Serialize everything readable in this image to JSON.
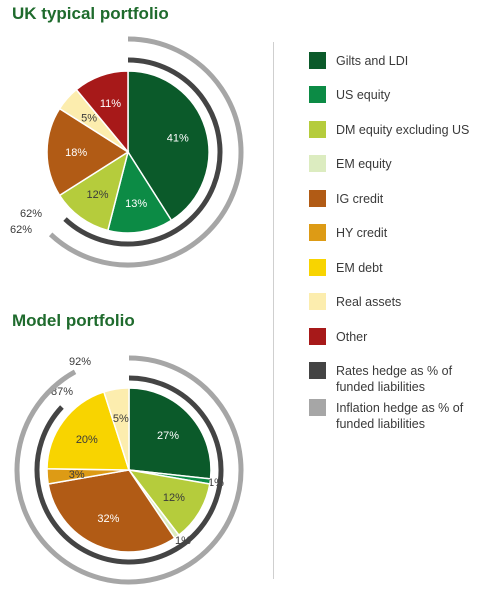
{
  "legend": {
    "items": [
      {
        "label": "Gilts and LDI",
        "color": "#0b5a2a"
      },
      {
        "label": "US equity",
        "color": "#0c8b45"
      },
      {
        "label": "DM equity excluding US",
        "color": "#b5cc3c"
      },
      {
        "label": "EM equity",
        "color": "#dcecc0"
      },
      {
        "label": "IG credit",
        "color": "#b15b15"
      },
      {
        "label": "HY credit",
        "color": "#dd9b15"
      },
      {
        "label": "EM debt",
        "color": "#f8d400"
      },
      {
        "label": "Real assets",
        "color": "#fcedae"
      },
      {
        "label": "Other",
        "color": "#a71919"
      },
      {
        "label": "Rates hedge as % of funded liabilities",
        "color": "#444444"
      },
      {
        "label": "Inflation hedge as % of funded liabilities",
        "color": "#a6a6a6"
      }
    ]
  },
  "chart_data": [
    {
      "type": "pie",
      "title": "UK typical portfolio",
      "slices": [
        {
          "category": "Gilts and LDI",
          "value": 41,
          "label": "41%"
        },
        {
          "category": "US equity",
          "value": 13,
          "label": "13%"
        },
        {
          "category": "DM equity excluding US",
          "value": 12,
          "label": "12%"
        },
        {
          "category": "IG credit",
          "value": 18,
          "label": "18%"
        },
        {
          "category": "Real assets",
          "value": 5,
          "label": "5%"
        },
        {
          "category": "Other",
          "value": 11,
          "label": "11%"
        }
      ],
      "hedges": [
        {
          "name": "Rates hedge as % of funded liabilities",
          "value": 62,
          "label": "62%"
        },
        {
          "name": "Inflation hedge as % of funded liabilities",
          "value": 62,
          "label": "62%"
        }
      ]
    },
    {
      "type": "pie",
      "title": "Model portfolio",
      "slices": [
        {
          "category": "Gilts and LDI",
          "value": 27,
          "label": "27%"
        },
        {
          "category": "US equity",
          "value": 1,
          "label": "1%"
        },
        {
          "category": "DM equity excluding US",
          "value": 12,
          "label": "12%"
        },
        {
          "category": "EM equity",
          "value": 1,
          "label": "1%"
        },
        {
          "category": "IG credit",
          "value": 32,
          "label": "32%"
        },
        {
          "category": "HY credit",
          "value": 3,
          "label": "3%"
        },
        {
          "category": "EM debt",
          "value": 20,
          "label": "20%"
        },
        {
          "category": "Real assets",
          "value": 5,
          "label": "5%"
        }
      ],
      "hedges": [
        {
          "name": "Rates hedge as % of funded liabilities",
          "value": 87,
          "label": "87%"
        },
        {
          "name": "Inflation hedge as % of funded liabilities",
          "value": 92,
          "label": "92%"
        }
      ]
    }
  ]
}
